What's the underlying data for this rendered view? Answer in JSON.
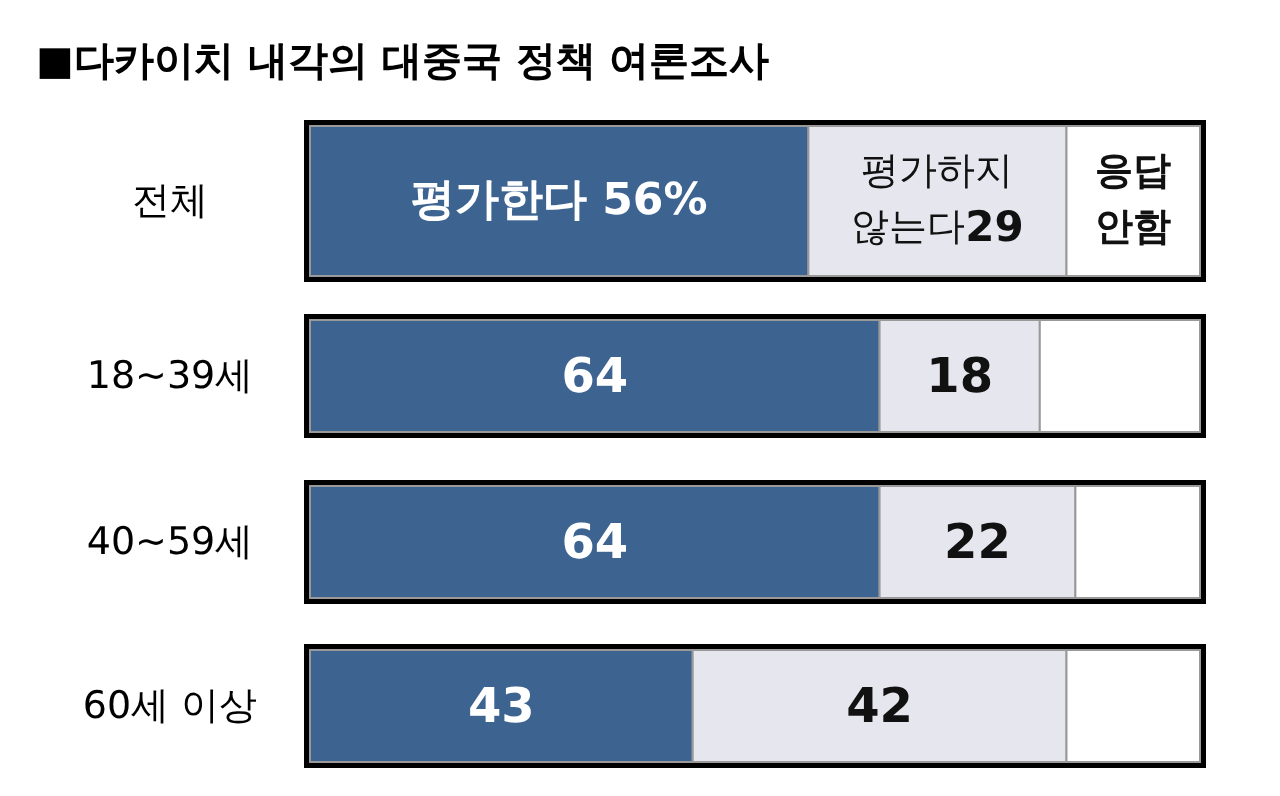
{
  "chart_data": {
    "type": "bar",
    "orientation": "horizontal",
    "stacked": true,
    "title": "■다카이치 내각의 대중국 정책 여론조사",
    "categories": [
      "전체",
      "18~39세",
      "40~59세",
      "60세 이상"
    ],
    "series": [
      {
        "name": "평가한다",
        "color": "#3d6491",
        "values": [
          56,
          64,
          64,
          43
        ],
        "value_labels": [
          "56%",
          "64",
          "64",
          "43"
        ]
      },
      {
        "name": "평가하지 않는다",
        "color": "#e6e6ee",
        "values": [
          29,
          18,
          22,
          42
        ],
        "value_labels": [
          "29",
          "18",
          "22",
          "42"
        ]
      },
      {
        "name": "응답 안함",
        "color": "#ffffff",
        "values": [
          15,
          18,
          14,
          15
        ],
        "value_labels": [
          null,
          null,
          null,
          null
        ]
      }
    ]
  }
}
